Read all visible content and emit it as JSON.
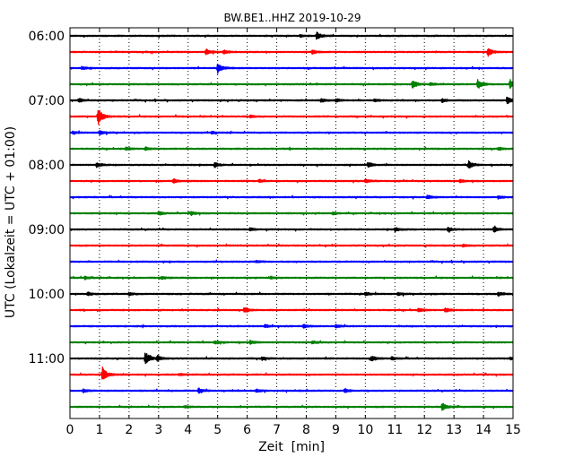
{
  "chart_data": {
    "type": "line",
    "title": "BW.BE1..HHZ 2019-10-29",
    "xlabel": "Zeit  [min]",
    "ylabel": "UTC (Lokalzeit = UTC + 01:00)",
    "xlim": [
      0,
      15
    ],
    "x_ticks": [
      "0",
      "1",
      "2",
      "3",
      "4",
      "5",
      "6",
      "7",
      "8",
      "9",
      "10",
      "11",
      "12",
      "13",
      "14",
      "15"
    ],
    "y_tick_labels": [
      "06:00",
      "07:00",
      "08:00",
      "09:00",
      "10:00",
      "11:00"
    ],
    "y_tick_rows": [
      0,
      4,
      8,
      12,
      16,
      20
    ],
    "vertical_dotted_grid": true,
    "row_interval_minutes": 15,
    "row_colors": [
      "#000000",
      "#ff0000",
      "#0000ff",
      "#008000"
    ],
    "rows": [
      {
        "start": "06:00",
        "events": [
          {
            "t": 8.35,
            "amp": 0.55
          },
          {
            "t": 7.8,
            "amp": 0.15
          }
        ]
      },
      {
        "start": "06:15",
        "events": [
          {
            "t": 4.6,
            "amp": 0.4
          },
          {
            "t": 5.2,
            "amp": 0.25
          },
          {
            "t": 8.2,
            "amp": 0.25
          },
          {
            "t": 14.15,
            "amp": 0.55
          }
        ]
      },
      {
        "start": "06:30",
        "events": [
          {
            "t": 0.4,
            "amp": 0.2
          },
          {
            "t": 5.0,
            "amp": 0.75
          }
        ]
      },
      {
        "start": "06:45",
        "events": [
          {
            "t": 11.6,
            "amp": 0.65
          },
          {
            "t": 12.2,
            "amp": 0.2
          },
          {
            "t": 13.8,
            "amp": 0.7
          },
          {
            "t": 14.9,
            "amp": 0.6
          }
        ]
      },
      {
        "start": "07:00",
        "events": [
          {
            "t": 0.3,
            "amp": 0.3
          },
          {
            "t": 8.5,
            "amp": 0.25
          },
          {
            "t": 9.0,
            "amp": 0.2
          },
          {
            "t": 10.3,
            "amp": 0.2
          },
          {
            "t": 12.6,
            "amp": 0.25
          },
          {
            "t": 14.8,
            "amp": 0.55
          }
        ]
      },
      {
        "start": "07:15",
        "events": [
          {
            "t": 0.95,
            "amp": 1.25
          },
          {
            "t": 6.1,
            "amp": 0.15
          }
        ]
      },
      {
        "start": "07:30",
        "events": [
          {
            "t": 0.1,
            "amp": 0.2
          },
          {
            "t": 1.0,
            "amp": 0.3
          },
          {
            "t": 4.8,
            "amp": 0.15
          }
        ]
      },
      {
        "start": "07:45",
        "events": [
          {
            "t": 1.9,
            "amp": 0.2
          },
          {
            "t": 2.55,
            "amp": 0.25
          },
          {
            "t": 14.5,
            "amp": 0.2
          }
        ]
      },
      {
        "start": "08:00",
        "events": [
          {
            "t": 0.9,
            "amp": 0.3
          },
          {
            "t": 4.9,
            "amp": 0.35
          },
          {
            "t": 10.1,
            "amp": 0.3
          },
          {
            "t": 13.5,
            "amp": 0.55
          }
        ]
      },
      {
        "start": "08:15",
        "events": [
          {
            "t": 3.5,
            "amp": 0.3
          },
          {
            "t": 6.4,
            "amp": 0.2
          },
          {
            "t": 10.0,
            "amp": 0.25
          },
          {
            "t": 13.2,
            "amp": 0.2
          }
        ]
      },
      {
        "start": "08:30",
        "events": [
          {
            "t": 12.1,
            "amp": 0.25
          },
          {
            "t": 14.5,
            "amp": 0.2
          }
        ]
      },
      {
        "start": "08:45",
        "events": [
          {
            "t": 3.0,
            "amp": 0.25
          },
          {
            "t": 4.1,
            "amp": 0.25
          },
          {
            "t": 8.9,
            "amp": 0.15
          }
        ]
      },
      {
        "start": "09:00",
        "events": [
          {
            "t": 6.1,
            "amp": 0.2
          },
          {
            "t": 11.0,
            "amp": 0.3
          },
          {
            "t": 12.8,
            "amp": 0.3
          },
          {
            "t": 14.35,
            "amp": 0.4
          }
        ]
      },
      {
        "start": "09:15",
        "events": [
          {
            "t": 13.3,
            "amp": 0.15
          }
        ]
      },
      {
        "start": "09:30",
        "events": [
          {
            "t": 6.3,
            "amp": 0.15
          }
        ]
      },
      {
        "start": "09:45",
        "events": [
          {
            "t": 0.5,
            "amp": 0.2
          },
          {
            "t": 3.1,
            "amp": 0.2
          },
          {
            "t": 6.8,
            "amp": 0.15
          }
        ]
      },
      {
        "start": "10:00",
        "events": [
          {
            "t": 0.6,
            "amp": 0.25
          },
          {
            "t": 2.0,
            "amp": 0.2
          },
          {
            "t": 10.0,
            "amp": 0.25
          },
          {
            "t": 11.1,
            "amp": 0.2
          },
          {
            "t": 14.5,
            "amp": 0.25
          }
        ]
      },
      {
        "start": "10:15",
        "events": [
          {
            "t": 5.9,
            "amp": 0.4
          },
          {
            "t": 11.8,
            "amp": 0.25
          },
          {
            "t": 12.7,
            "amp": 0.35
          }
        ]
      },
      {
        "start": "10:30",
        "events": [
          {
            "t": 6.6,
            "amp": 0.2
          },
          {
            "t": 7.9,
            "amp": 0.25
          },
          {
            "t": 9.0,
            "amp": 0.2
          }
        ]
      },
      {
        "start": "10:45",
        "events": [
          {
            "t": 4.9,
            "amp": 0.2
          },
          {
            "t": 6.1,
            "amp": 0.25
          },
          {
            "t": 8.2,
            "amp": 0.2
          }
        ]
      },
      {
        "start": "11:00",
        "events": [
          {
            "t": 2.55,
            "amp": 0.95
          },
          {
            "t": 2.95,
            "amp": 0.4
          },
          {
            "t": 6.5,
            "amp": 0.25
          },
          {
            "t": 10.2,
            "amp": 0.4
          },
          {
            "t": 10.9,
            "amp": 0.2
          },
          {
            "t": 14.9,
            "amp": 0.15
          }
        ]
      },
      {
        "start": "11:15",
        "events": [
          {
            "t": 1.1,
            "amp": 1.05
          },
          {
            "t": 3.7,
            "amp": 0.15
          }
        ]
      },
      {
        "start": "11:30",
        "events": [
          {
            "t": 0.45,
            "amp": 0.2
          },
          {
            "t": 4.35,
            "amp": 0.35
          },
          {
            "t": 6.3,
            "amp": 0.25
          },
          {
            "t": 9.3,
            "amp": 0.25
          }
        ]
      },
      {
        "start": "11:45",
        "events": [
          {
            "t": 3.9,
            "amp": 0.15
          },
          {
            "t": 12.6,
            "amp": 0.55
          }
        ]
      }
    ]
  }
}
